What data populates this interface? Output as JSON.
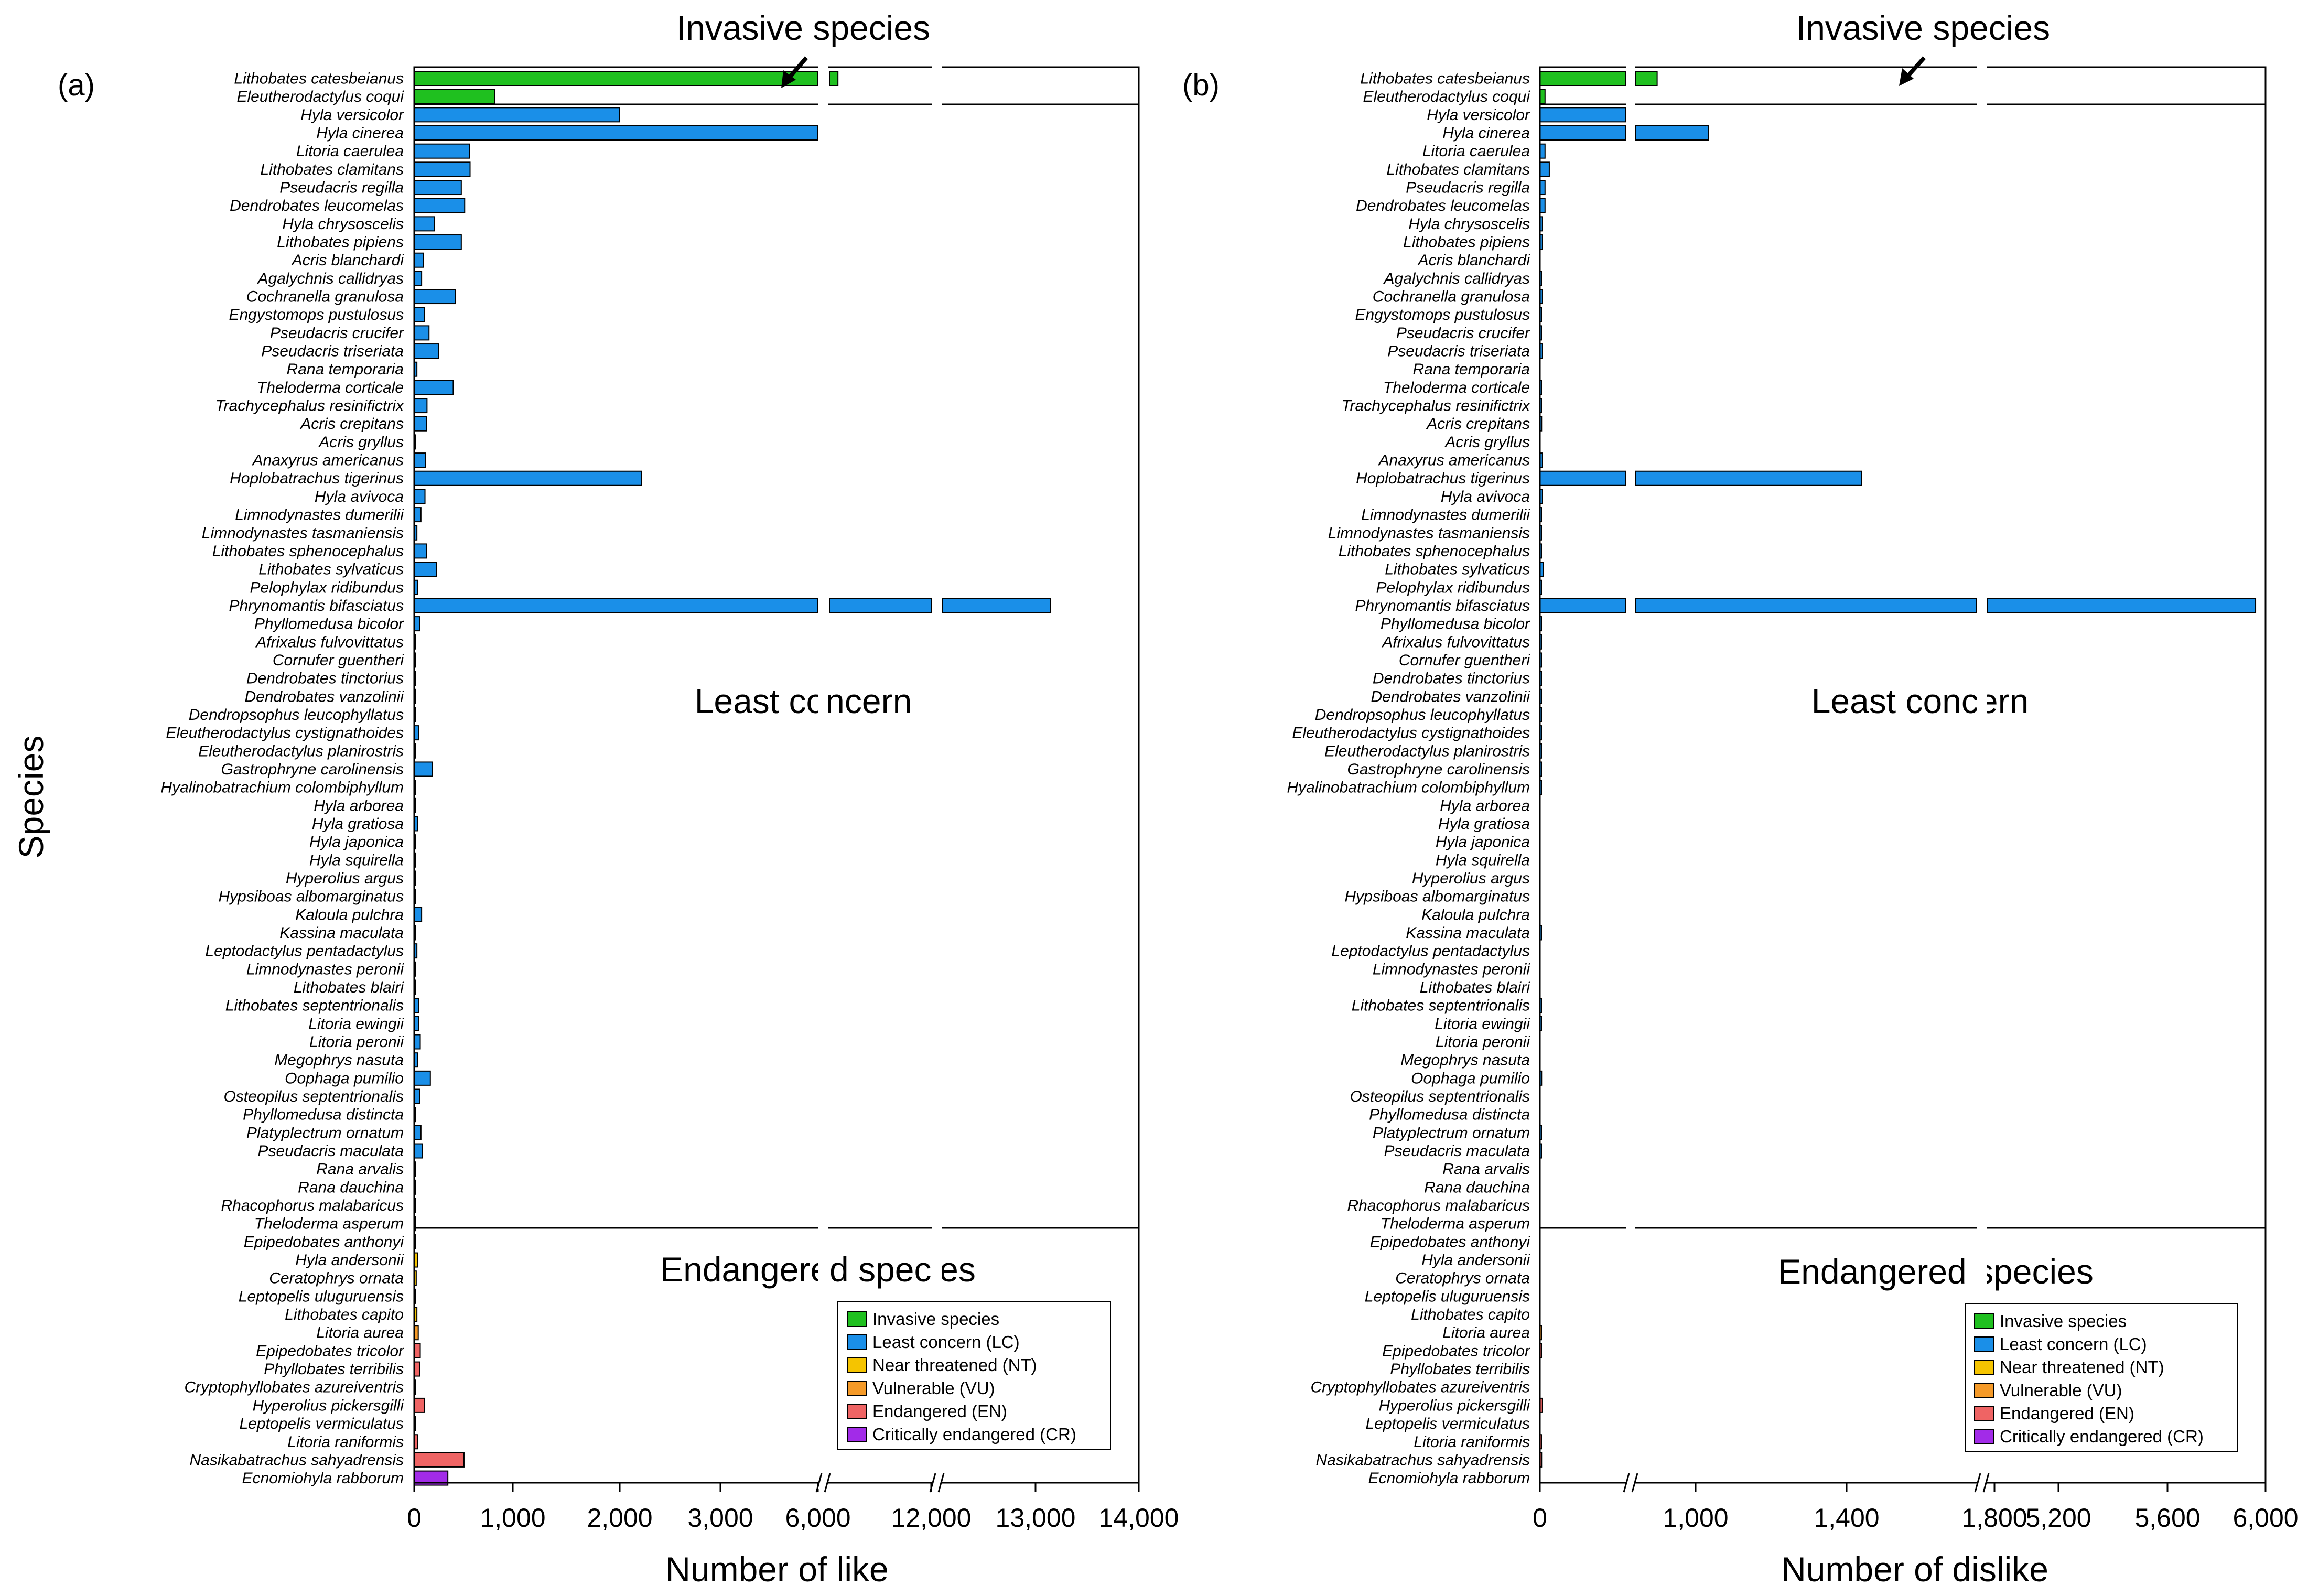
{
  "figure": {
    "ylabel": "Species",
    "invasive_label": "Invasive species",
    "least_concern_label": "Least concern",
    "endangered_label": "Endangered species"
  },
  "colors": {
    "Invasive species": "#1fc01f",
    "Least concern (LC)": "#1a8fe8",
    "Near threatened (NT)": "#f5c400",
    "Vulnerable (VU)": "#f59a28",
    "Endangered (EN)": "#ef6464",
    "Critically endangered (CR)": "#a22be8"
  },
  "legend": {
    "items": [
      "Invasive species",
      "Least concern (LC)",
      "Near threatened (NT)",
      "Vulnerable (VU)",
      "Endangered (EN)",
      "Critically endangered (CR)"
    ]
  },
  "chart_data": [
    {
      "type": "bar",
      "orientation": "horizontal",
      "panel": "(a)",
      "xlabel": "Number of like",
      "ylabel": "Species",
      "xticks": [
        "0",
        "1,000",
        "2,000",
        "3,000",
        "6,000",
        "12,000",
        "13,000",
        "14,000"
      ],
      "axis_breaks": [
        "between 3,000 and 6,000",
        "between 6,000 and 12,000"
      ],
      "categories": [
        "Lithobates catesbeianus",
        "Eleutherodactylus coqui",
        "Hyla versicolor",
        "Hyla cinerea",
        "Litoria caerulea",
        "Lithobates clamitans",
        "Pseudacris regilla",
        "Dendrobates leucomelas",
        "Hyla chrysoscelis",
        "Lithobates pipiens",
        "Acris blanchardi",
        "Agalychnis callidryas",
        "Cochranella granulosa",
        "Engystomops pustulosus",
        "Pseudacris crucifer",
        "Pseudacris triseriata",
        "Rana temporaria",
        "Theloderma corticale",
        "Trachycephalus resinifictrix",
        "Acris crepitans",
        "Acris gryllus",
        "Anaxyrus americanus",
        "Hoplobatrachus tigerinus",
        "Hyla avivoca",
        "Limnodynastes dumerilii",
        "Limnodynastes tasmaniensis",
        "Lithobates sphenocephalus",
        "Lithobates sylvaticus",
        "Pelophylax ridibundus",
        "Phrynomantis bifasciatus",
        "Phyllomedusa bicolor",
        "Afrixalus fulvovittatus",
        "Cornufer guentheri",
        "Dendrobates tinctorius",
        "Dendrobates vanzolinii",
        "Dendropsophus leucophyllatus",
        "Eleutherodactylus cystignathoides",
        "Eleutherodactylus planirostris",
        "Gastrophryne carolinensis",
        "Hyalinobatrachium colombiphyllum",
        "Hyla arborea",
        "Hyla gratiosa",
        "Hyla japonica",
        "Hyla squirella",
        "Hyperolius argus",
        "Hypsiboas albomarginatus",
        "Kaloula pulchra",
        "Kassina maculata",
        "Leptodactylus pentadactylus",
        "Limnodynastes peronii",
        "Lithobates blairi",
        "Lithobates septentrionalis",
        "Litoria ewingii",
        "Litoria peronii",
        "Megophrys nasuta",
        "Oophaga pumilio",
        "Osteopilus septentrionalis",
        "Phyllomedusa distincta",
        "Platyplectrum ornatum",
        "Pseudacris maculata",
        "Rana arvalis",
        "Rana dauchina",
        "Rhacophorus malabaricus",
        "Theloderma asperum",
        "Epipedobates anthonyi",
        "Hyla andersonii",
        "Ceratophrys ornata",
        "Leptopelis uluguruensis",
        "Lithobates capito",
        "Litoria aurea",
        "Epipedobates tricolor",
        "Phyllobates terribilis",
        "Cryptophyllobates azureiventris",
        "Hyperolius pickersgilli",
        "Leptopelis vermiculatus",
        "Litoria raniformis",
        "Nasikabatrachus sahyadrensis",
        "Ecnomiohyla rabborum"
      ],
      "status": [
        "Invasive species",
        "Invasive species",
        "Least concern (LC)",
        "Least concern (LC)",
        "Least concern (LC)",
        "Least concern (LC)",
        "Least concern (LC)",
        "Least concern (LC)",
        "Least concern (LC)",
        "Least concern (LC)",
        "Least concern (LC)",
        "Least concern (LC)",
        "Least concern (LC)",
        "Least concern (LC)",
        "Least concern (LC)",
        "Least concern (LC)",
        "Least concern (LC)",
        "Least concern (LC)",
        "Least concern (LC)",
        "Least concern (LC)",
        "Least concern (LC)",
        "Least concern (LC)",
        "Least concern (LC)",
        "Least concern (LC)",
        "Least concern (LC)",
        "Least concern (LC)",
        "Least concern (LC)",
        "Least concern (LC)",
        "Least concern (LC)",
        "Least concern (LC)",
        "Least concern (LC)",
        "Least concern (LC)",
        "Least concern (LC)",
        "Least concern (LC)",
        "Least concern (LC)",
        "Least concern (LC)",
        "Least concern (LC)",
        "Least concern (LC)",
        "Least concern (LC)",
        "Least concern (LC)",
        "Least concern (LC)",
        "Least concern (LC)",
        "Least concern (LC)",
        "Least concern (LC)",
        "Least concern (LC)",
        "Least concern (LC)",
        "Least concern (LC)",
        "Least concern (LC)",
        "Least concern (LC)",
        "Least concern (LC)",
        "Least concern (LC)",
        "Least concern (LC)",
        "Least concern (LC)",
        "Least concern (LC)",
        "Least concern (LC)",
        "Least concern (LC)",
        "Least concern (LC)",
        "Least concern (LC)",
        "Least concern (LC)",
        "Least concern (LC)",
        "Least concern (LC)",
        "Least concern (LC)",
        "Least concern (LC)",
        "Least concern (LC)",
        "Near threatened (NT)",
        "Near threatened (NT)",
        "Near threatened (NT)",
        "Near threatened (NT)",
        "Near threatened (NT)",
        "Vulnerable (VU)",
        "Endangered (EN)",
        "Endangered (EN)",
        "Endangered (EN)",
        "Endangered (EN)",
        "Endangered (EN)",
        "Endangered (EN)",
        "Endangered (EN)",
        "Critically endangered (CR)"
      ],
      "values": [
        6500,
        1200,
        3050,
        6000,
        820,
        830,
        700,
        750,
        300,
        700,
        140,
        110,
        610,
        150,
        220,
        360,
        40,
        580,
        190,
        180,
        20,
        170,
        3380,
        160,
        100,
        40,
        180,
        330,
        50,
        13100,
        80,
        5,
        20,
        10,
        10,
        20,
        70,
        5,
        270,
        10,
        20,
        50,
        20,
        10,
        5,
        5,
        110,
        5,
        40,
        10,
        20,
        70,
        70,
        90,
        50,
        240,
        80,
        20,
        100,
        120,
        5,
        10,
        5,
        5,
        5,
        50,
        30,
        5,
        40,
        60,
        90,
        80,
        10,
        150,
        5,
        50,
        740,
        500
      ]
    },
    {
      "type": "bar",
      "orientation": "horizontal",
      "panel": "(b)",
      "xlabel": "Number of dislike",
      "ylabel": "Species",
      "xticks": [
        "0",
        "1,000",
        "1,400",
        "1,800",
        "5,200",
        "5,600",
        "6,000"
      ],
      "axis_breaks": [
        "between 0 and 1,000",
        "between 1,800 and 5,200"
      ],
      "categories": [
        "Lithobates catesbeianus",
        "Eleutherodactylus coqui",
        "Hyla versicolor",
        "Hyla cinerea",
        "Litoria caerulea",
        "Lithobates clamitans",
        "Pseudacris regilla",
        "Dendrobates leucomelas",
        "Hyla chrysoscelis",
        "Lithobates pipiens",
        "Acris blanchardi",
        "Agalychnis callidryas",
        "Cochranella granulosa",
        "Engystomops pustulosus",
        "Pseudacris crucifer",
        "Pseudacris triseriata",
        "Rana temporaria",
        "Theloderma corticale",
        "Trachycephalus resinifictrix",
        "Acris crepitans",
        "Acris gryllus",
        "Anaxyrus americanus",
        "Hoplobatrachus tigerinus",
        "Hyla avivoca",
        "Limnodynastes dumerilii",
        "Limnodynastes tasmaniensis",
        "Lithobates sphenocephalus",
        "Lithobates sylvaticus",
        "Pelophylax ridibundus",
        "Phrynomantis bifasciatus",
        "Phyllomedusa bicolor",
        "Afrixalus fulvovittatus",
        "Cornufer guentheri",
        "Dendrobates tinctorius",
        "Dendrobates vanzolinii",
        "Dendropsophus leucophyllatus",
        "Eleutherodactylus cystignathoides",
        "Eleutherodactylus planirostris",
        "Gastrophryne carolinensis",
        "Hyalinobatrachium colombiphyllum",
        "Hyla arborea",
        "Hyla gratiosa",
        "Hyla japonica",
        "Hyla squirella",
        "Hyperolius argus",
        "Hypsiboas albomarginatus",
        "Kaloula pulchra",
        "Kassina maculata",
        "Leptodactylus pentadactylus",
        "Limnodynastes peronii",
        "Lithobates blairi",
        "Lithobates septentrionalis",
        "Litoria ewingii",
        "Litoria peronii",
        "Megophrys nasuta",
        "Oophaga pumilio",
        "Osteopilus septentrionalis",
        "Phyllomedusa distincta",
        "Platyplectrum ornatum",
        "Pseudacris maculata",
        "Rana arvalis",
        "Rana dauchina",
        "Rhacophorus malabaricus",
        "Theloderma asperum",
        "Epipedobates anthonyi",
        "Hyla andersonii",
        "Ceratophrys ornata",
        "Leptopelis uluguruensis",
        "Lithobates capito",
        "Litoria aurea",
        "Epipedobates tricolor",
        "Phyllobates terribilis",
        "Cryptophyllobates azureiventris",
        "Hyperolius pickersgilli",
        "Leptopelis vermiculatus",
        "Litoria raniformis",
        "Nasikabatrachus sahyadrensis",
        "Ecnomiohyla rabborum"
      ],
      "status": [
        "Invasive species",
        "Invasive species",
        "Least concern (LC)",
        "Least concern (LC)",
        "Least concern (LC)",
        "Least concern (LC)",
        "Least concern (LC)",
        "Least concern (LC)",
        "Least concern (LC)",
        "Least concern (LC)",
        "Least concern (LC)",
        "Least concern (LC)",
        "Least concern (LC)",
        "Least concern (LC)",
        "Least concern (LC)",
        "Least concern (LC)",
        "Least concern (LC)",
        "Least concern (LC)",
        "Least concern (LC)",
        "Least concern (LC)",
        "Least concern (LC)",
        "Least concern (LC)",
        "Least concern (LC)",
        "Least concern (LC)",
        "Least concern (LC)",
        "Least concern (LC)",
        "Least concern (LC)",
        "Least concern (LC)",
        "Least concern (LC)",
        "Least concern (LC)",
        "Least concern (LC)",
        "Least concern (LC)",
        "Least concern (LC)",
        "Least concern (LC)",
        "Least concern (LC)",
        "Least concern (LC)",
        "Least concern (LC)",
        "Least concern (LC)",
        "Least concern (LC)",
        "Least concern (LC)",
        "Least concern (LC)",
        "Least concern (LC)",
        "Least concern (LC)",
        "Least concern (LC)",
        "Least concern (LC)",
        "Least concern (LC)",
        "Least concern (LC)",
        "Least concern (LC)",
        "Least concern (LC)",
        "Least concern (LC)",
        "Least concern (LC)",
        "Least concern (LC)",
        "Least concern (LC)",
        "Least concern (LC)",
        "Least concern (LC)",
        "Least concern (LC)",
        "Least concern (LC)",
        "Least concern (LC)",
        "Least concern (LC)",
        "Least concern (LC)",
        "Least concern (LC)",
        "Least concern (LC)",
        "Least concern (LC)",
        "Least concern (LC)",
        "Near threatened (NT)",
        "Near threatened (NT)",
        "Near threatened (NT)",
        "Near threatened (NT)",
        "Near threatened (NT)",
        "Vulnerable (VU)",
        "Endangered (EN)",
        "Endangered (EN)",
        "Endangered (EN)",
        "Endangered (EN)",
        "Endangered (EN)",
        "Endangered (EN)",
        "Endangered (EN)",
        "Critically endangered (CR)"
      ],
      "values": [
        1050,
        60,
        1000,
        1170,
        60,
        110,
        60,
        60,
        30,
        30,
        0,
        10,
        30,
        5,
        10,
        30,
        0,
        10,
        10,
        20,
        0,
        30,
        1530,
        30,
        5,
        5,
        10,
        40,
        5,
        5850,
        5,
        5,
        5,
        5,
        5,
        5,
        5,
        5,
        5,
        5,
        0,
        0,
        0,
        0,
        0,
        0,
        0,
        5,
        0,
        0,
        0,
        5,
        5,
        0,
        0,
        20,
        0,
        0,
        10,
        10,
        0,
        0,
        0,
        0,
        0,
        0,
        0,
        0,
        0,
        5,
        5,
        0,
        0,
        30,
        0,
        5,
        20,
        0
      ]
    }
  ]
}
